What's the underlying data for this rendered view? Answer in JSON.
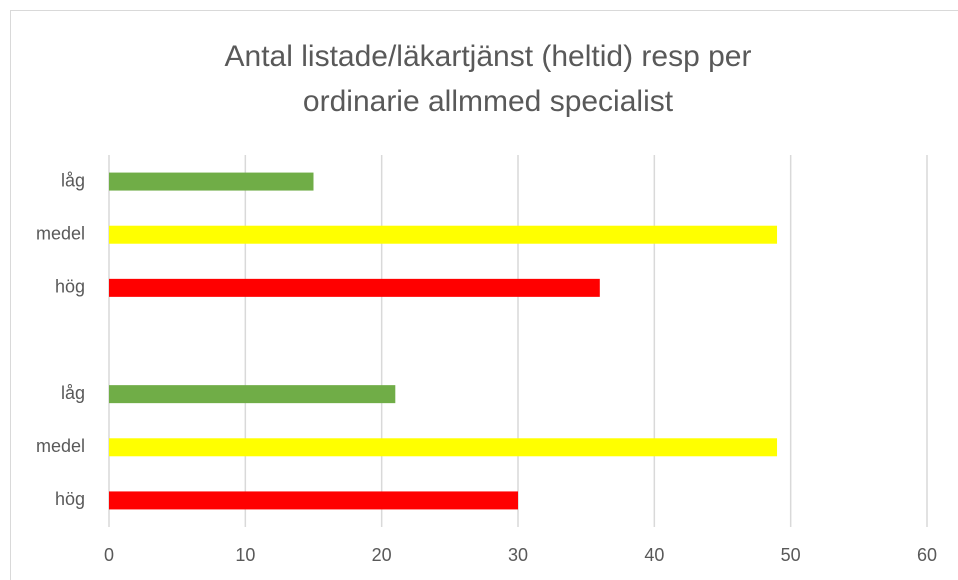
{
  "chart_data": {
    "type": "barh",
    "title": [
      "Antal listade/läkartjänst (heltid) resp per",
      "ordinarie allmmed specialist"
    ],
    "categories": [
      "låg",
      "medel",
      "hög",
      null,
      "låg",
      "medel",
      "hög"
    ],
    "values": [
      15,
      49,
      36,
      null,
      21,
      49,
      30
    ],
    "colors": [
      "#70ad47",
      "#ffff00",
      "#ff0000",
      null,
      "#70ad47",
      "#ffff00",
      "#ff0000"
    ],
    "xlim": [
      0,
      60
    ],
    "xticks": [
      0,
      10,
      20,
      30,
      40,
      50,
      60
    ],
    "grid": true
  }
}
